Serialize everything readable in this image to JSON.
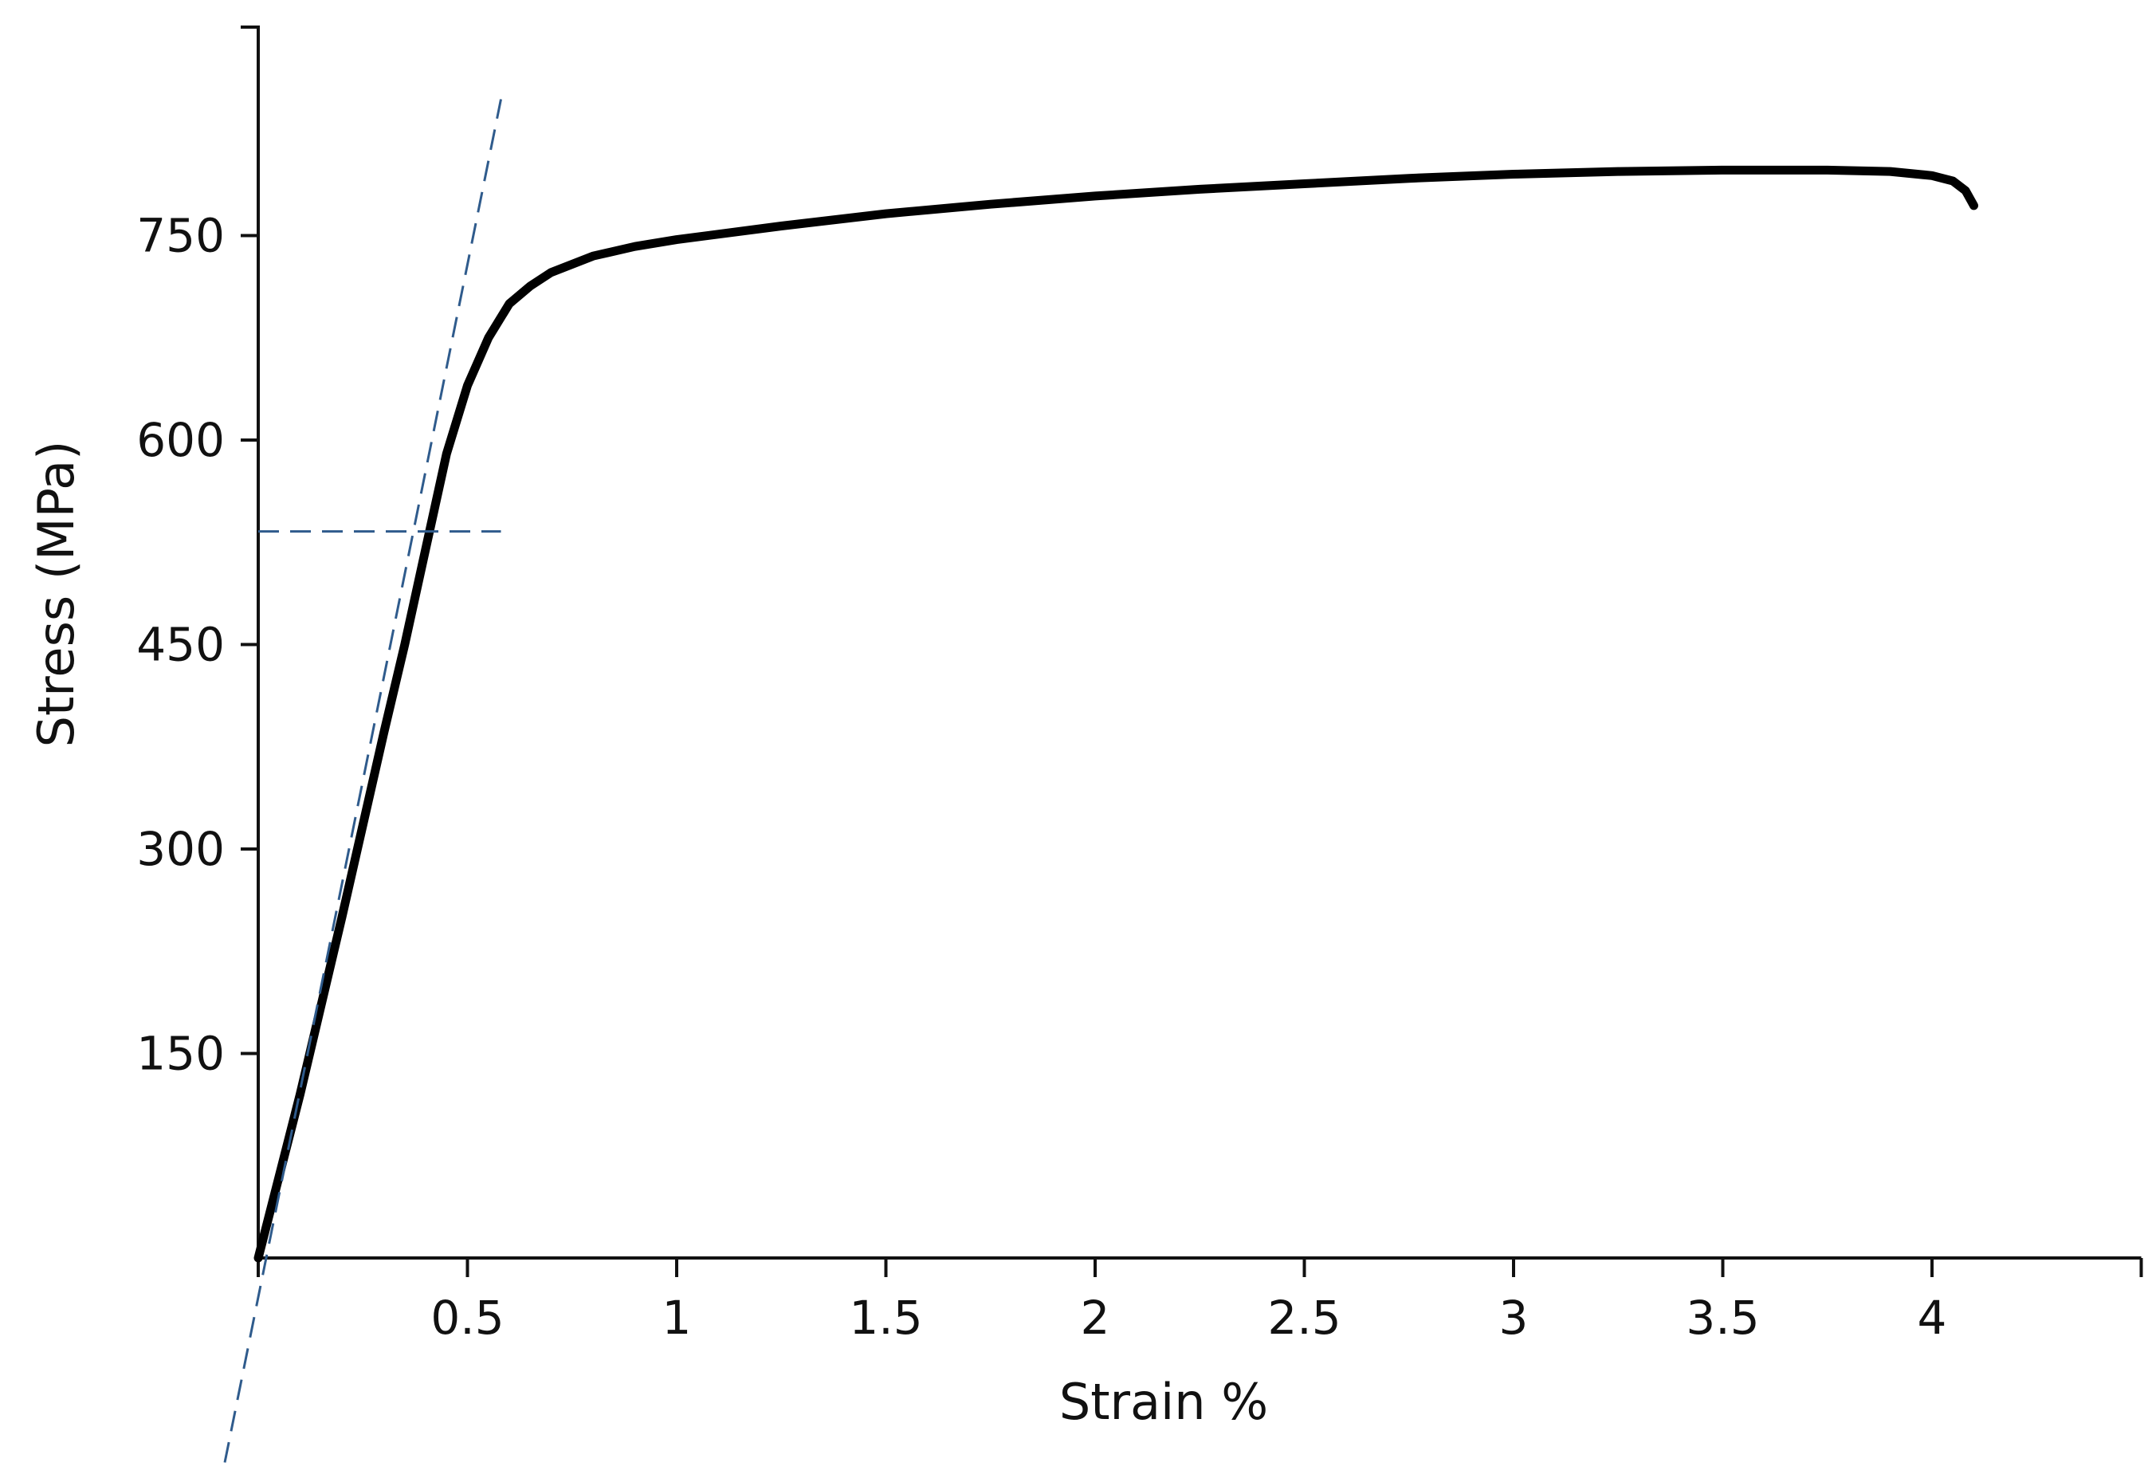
{
  "chart_data": {
    "type": "line",
    "title": "",
    "xlabel": "Strain %",
    "ylabel": "Stress (MPa)",
    "xlim": [
      0,
      4.5
    ],
    "ylim": [
      0,
      900
    ],
    "x_ticks": [
      0.5,
      1,
      1.5,
      2,
      2.5,
      3,
      3.5,
      4
    ],
    "x_tick_labels": [
      "0.5",
      "1",
      "1.5",
      "2",
      "2.5",
      "3",
      "3.5",
      "4"
    ],
    "y_ticks": [
      150,
      300,
      450,
      600,
      750
    ],
    "y_tick_labels": [
      "150",
      "300",
      "450",
      "600",
      "750"
    ],
    "grid": false,
    "legend": "none",
    "series": [
      {
        "color": "#000000",
        "style": "solid",
        "x": [
          0,
          0.1,
          0.2,
          0.3,
          0.35,
          0.4,
          0.45,
          0.5,
          0.55,
          0.6,
          0.65,
          0.7,
          0.8,
          0.9,
          1.0,
          1.25,
          1.5,
          1.75,
          2.0,
          2.25,
          2.5,
          2.75,
          3.0,
          3.25,
          3.5,
          3.75,
          3.9,
          4.0,
          4.05,
          4.08,
          4.1
        ],
        "y": [
          0,
          120,
          250,
          385,
          450,
          520,
          590,
          640,
          675,
          700,
          713,
          723,
          735,
          742,
          747,
          757,
          766,
          773,
          779,
          784,
          788,
          792,
          795,
          797,
          798,
          798,
          797,
          794,
          790,
          783,
          772
        ]
      },
      {
        "color": "#2f5b8c",
        "style": "dashed",
        "x": [
          -0.08,
          0.58
        ],
        "y": [
          -150,
          850
        ]
      },
      {
        "color": "#2f5b8c",
        "style": "dashed",
        "x": [
          0,
          0.58
        ],
        "y": [
          533,
          533
        ]
      }
    ]
  }
}
